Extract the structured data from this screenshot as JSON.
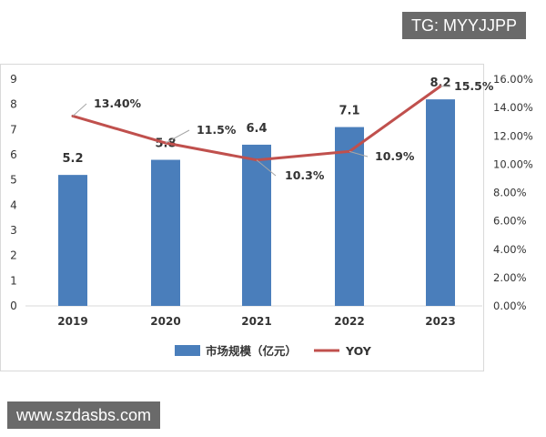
{
  "watermarks": {
    "top_tag": "TG: MYYJJPP",
    "bottom_url": "www.szdasbs.com"
  },
  "chart_data": {
    "type": "bar",
    "categories": [
      "2019",
      "2020",
      "2021",
      "2022",
      "2023"
    ],
    "series": [
      {
        "name": "市场规模（亿元）",
        "kind": "bar",
        "axis": "left",
        "color": "#4a7ebb",
        "values": [
          5.2,
          5.8,
          6.4,
          7.1,
          8.2
        ],
        "labels": [
          "5.2",
          "5.8",
          "6.4",
          "7.1",
          "8.2"
        ]
      },
      {
        "name": "YOY",
        "kind": "line",
        "axis": "right",
        "color": "#c0504d",
        "values": [
          13.4,
          11.5,
          10.3,
          10.9,
          15.5
        ],
        "labels": [
          "13.40%",
          "11.5%",
          "10.3%",
          "10.9%",
          "15.5%"
        ]
      }
    ],
    "left_axis": {
      "ylim": [
        0,
        9
      ],
      "ticks": [
        "0",
        "1",
        "2",
        "3",
        "4",
        "5",
        "6",
        "7",
        "8",
        "9"
      ]
    },
    "right_axis": {
      "ylim": [
        0,
        16
      ],
      "ticks": [
        "0.00%",
        "2.00%",
        "4.00%",
        "6.00%",
        "8.00%",
        "10.00%",
        "12.00%",
        "14.00%",
        "16.00%"
      ]
    },
    "grid": false,
    "legend": "bottom-center"
  }
}
